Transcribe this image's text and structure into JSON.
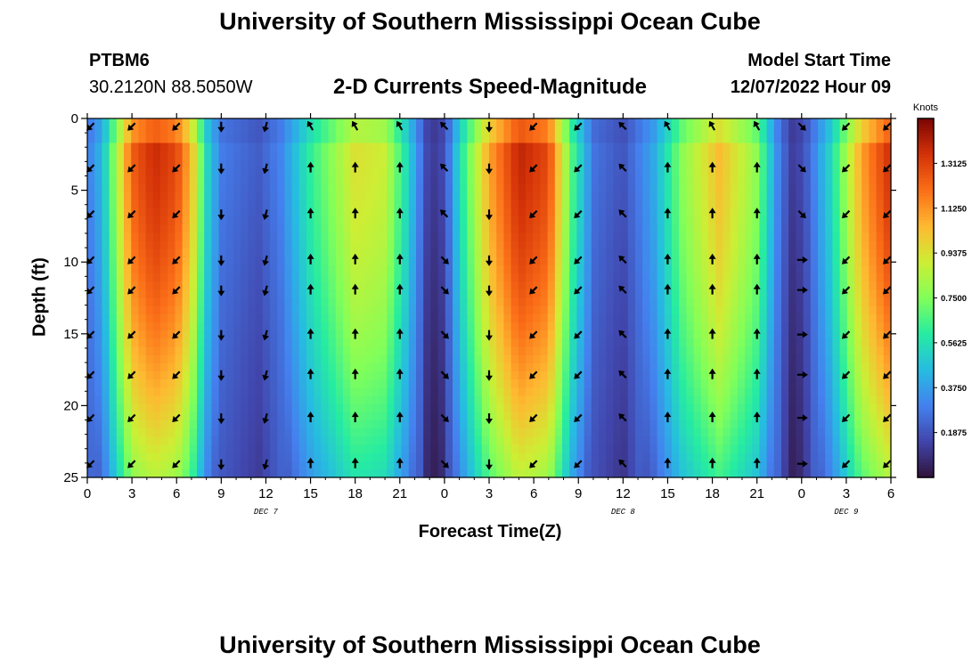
{
  "header": {
    "title": "University of Southern Mississippi Ocean Cube",
    "station_id": "PTBM6",
    "station_coords": "30.2120N  88.5050W",
    "chart_subtitle": "2-D Currents Speed-Magnitude",
    "model_start_label": "Model Start Time",
    "model_start_value": "12/07/2022 Hour 09"
  },
  "footer": {
    "title": "University of Southern Mississippi Ocean Cube"
  },
  "chart_data": {
    "type": "heatmap",
    "title": "2-D Currents Speed-Magnitude",
    "xlabel": "Forecast Time(Z)",
    "ylabel": "Depth (ft)",
    "x_range_hours": [
      0,
      54
    ],
    "y_range_ft": [
      0,
      25
    ],
    "y_inverted": true,
    "x_tick_labels": [
      "0",
      "3",
      "6",
      "9",
      "12",
      "15",
      "18",
      "21",
      "0",
      "3",
      "6",
      "9",
      "12",
      "15",
      "18",
      "21",
      "0",
      "3",
      "6"
    ],
    "x_tick_hours": [
      0,
      3,
      6,
      9,
      12,
      15,
      18,
      21,
      24,
      27,
      30,
      33,
      36,
      39,
      42,
      45,
      48,
      51,
      54
    ],
    "y_tick_labels": [
      "0",
      "5",
      "10",
      "15",
      "20",
      "25"
    ],
    "y_tick_values": [
      0,
      5,
      10,
      15,
      20,
      25
    ],
    "day_labels": [
      {
        "text": "DEC 7",
        "hour": 12
      },
      {
        "text": "DEC 8",
        "hour": 36
      },
      {
        "text": "DEC 9",
        "hour": 51
      }
    ],
    "colorbar": {
      "title": "Knots",
      "tick_labels": [
        "1.3125",
        "1.1250",
        "0.9375",
        "0.7500",
        "0.5625",
        "0.3750",
        "0.1875"
      ],
      "tick_values": [
        1.3125,
        1.125,
        0.9375,
        0.75,
        0.5625,
        0.375,
        0.1875
      ],
      "min": 0.0,
      "max": 1.5
    },
    "speed_profile_by_hour": [
      {
        "hour": 0,
        "speed": 0.3
      },
      {
        "hour": 1,
        "speed": 0.45
      },
      {
        "hour": 2,
        "speed": 0.85
      },
      {
        "hour": 3,
        "speed": 1.25
      },
      {
        "hour": 4.5,
        "speed": 1.38
      },
      {
        "hour": 6,
        "speed": 1.3
      },
      {
        "hour": 7,
        "speed": 1.05
      },
      {
        "hour": 8,
        "speed": 0.55
      },
      {
        "hour": 9,
        "speed": 0.3
      },
      {
        "hour": 11.5,
        "speed": 0.22
      },
      {
        "hour": 13,
        "speed": 0.32
      },
      {
        "hour": 15,
        "speed": 0.62
      },
      {
        "hour": 18,
        "speed": 0.95
      },
      {
        "hour": 20,
        "speed": 0.9
      },
      {
        "hour": 21.5,
        "speed": 0.55
      },
      {
        "hour": 23,
        "speed": 0.12
      },
      {
        "hour": 24,
        "speed": 0.18
      },
      {
        "hour": 25,
        "speed": 0.55
      },
      {
        "hour": 27,
        "speed": 1.1
      },
      {
        "hour": 29,
        "speed": 1.4
      },
      {
        "hour": 31,
        "speed": 1.3
      },
      {
        "hour": 32.5,
        "speed": 0.7
      },
      {
        "hour": 34,
        "speed": 0.28
      },
      {
        "hour": 36,
        "speed": 0.2
      },
      {
        "hour": 38,
        "speed": 0.4
      },
      {
        "hour": 40,
        "speed": 0.78
      },
      {
        "hour": 42.5,
        "speed": 1.05
      },
      {
        "hour": 45,
        "speed": 0.78
      },
      {
        "hour": 46.5,
        "speed": 0.3
      },
      {
        "hour": 47.5,
        "speed": 0.12
      },
      {
        "hour": 48.5,
        "speed": 0.25
      },
      {
        "hour": 50,
        "speed": 0.55
      },
      {
        "hour": 52,
        "speed": 1.1
      },
      {
        "hour": 54,
        "speed": 1.38
      }
    ],
    "arrow_hours": [
      0,
      3,
      6,
      9,
      12,
      15,
      18,
      21,
      24,
      27,
      30,
      33,
      36,
      39,
      42,
      45,
      48,
      51,
      54
    ],
    "arrow_directions_deg_cw_from_north": [
      225,
      225,
      225,
      180,
      195,
      0,
      0,
      0,
      135,
      180,
      225,
      225,
      315,
      0,
      0,
      0,
      90,
      225,
      225
    ]
  }
}
